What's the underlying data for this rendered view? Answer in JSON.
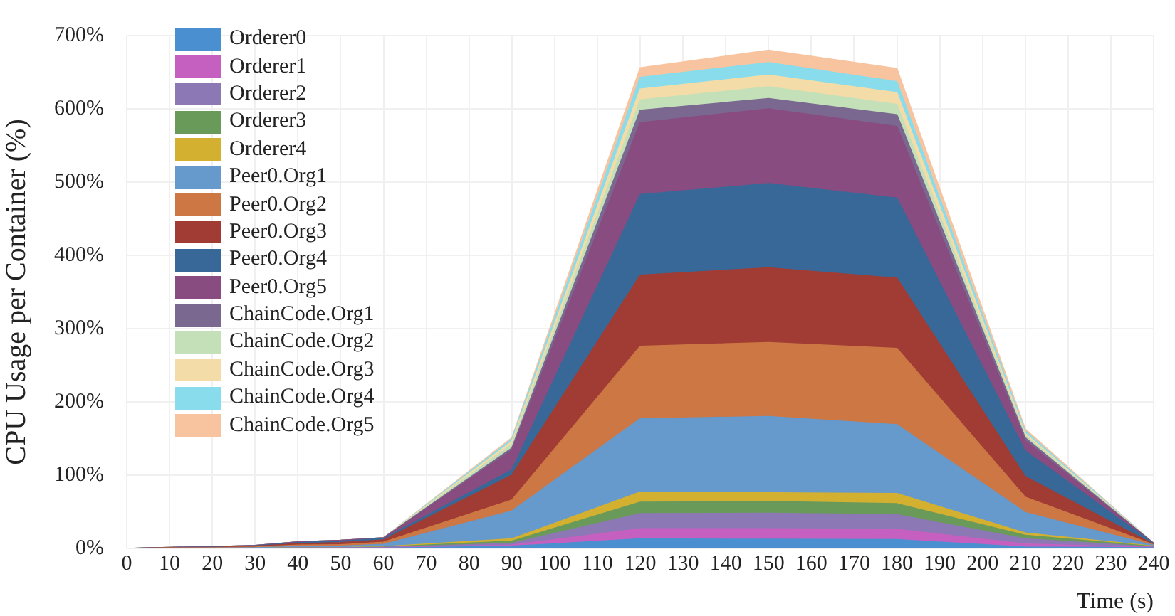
{
  "chart_data": {
    "type": "area",
    "stacked": true,
    "xlabel": "Time (s)",
    "ylabel": "CPU Usage per Container (%)",
    "legend": "top left",
    "grid": true,
    "x": [
      0,
      10,
      20,
      30,
      40,
      50,
      60,
      90,
      120,
      150,
      180,
      210,
      240
    ],
    "xlim": [
      0,
      240
    ],
    "xticks": [
      0,
      10,
      20,
      30,
      40,
      50,
      60,
      70,
      80,
      90,
      100,
      110,
      120,
      130,
      140,
      150,
      160,
      170,
      180,
      190,
      200,
      210,
      220,
      230,
      240
    ],
    "ylim": [
      0,
      700
    ],
    "yticks": [
      {
        "value": 0,
        "label": "0%"
      },
      {
        "value": 100,
        "label": "100%"
      },
      {
        "value": 200,
        "label": "200%"
      },
      {
        "value": 300,
        "label": "300%"
      },
      {
        "value": 400,
        "label": "400%"
      },
      {
        "value": 500,
        "label": "500%"
      },
      {
        "value": 600,
        "label": "600%"
      },
      {
        "value": 700,
        "label": "700%"
      }
    ],
    "series": [
      {
        "name": "Orderer0",
        "color": "#4a90d0",
        "values": [
          0,
          0,
          0,
          0,
          0.2,
          0.2,
          0.5,
          3,
          13,
          12.5,
          12,
          2,
          1
        ]
      },
      {
        "name": "Orderer1",
        "color": "#c660c0",
        "values": [
          0,
          0,
          0,
          0,
          0.2,
          0.2,
          0.5,
          1.5,
          14,
          14.5,
          14,
          4,
          0.5
        ]
      },
      {
        "name": "Orderer2",
        "color": "#8c78b4",
        "values": [
          0,
          0,
          0,
          0,
          0.2,
          0.2,
          0.5,
          2.5,
          20.5,
          21,
          20,
          7,
          0.5
        ]
      },
      {
        "name": "Orderer3",
        "color": "#6a9a5a",
        "values": [
          0,
          0,
          0,
          0,
          0.2,
          0.2,
          0.5,
          3,
          15.5,
          16,
          15,
          5,
          0.5
        ]
      },
      {
        "name": "Orderer4",
        "color": "#d4b030",
        "values": [
          0,
          0,
          0,
          0,
          0.2,
          0.2,
          0.5,
          3,
          14,
          12,
          14,
          3,
          0.5
        ]
      },
      {
        "name": "Peer0.Org1",
        "color": "#6699cc",
        "values": [
          0,
          0.3,
          0.5,
          1,
          1.5,
          2,
          3,
          38,
          100,
          104,
          94,
          28,
          1
        ]
      },
      {
        "name": "Peer0.Org2",
        "color": "#cc7744",
        "values": [
          0,
          0.3,
          0.5,
          1,
          2,
          2,
          3,
          15,
          99,
          101,
          104,
          21,
          1
        ]
      },
      {
        "name": "Peer0.Org3",
        "color": "#a03c34",
        "values": [
          0,
          0.3,
          0.5,
          1,
          2,
          3,
          3,
          34,
          97,
          102,
          96,
          28,
          0.5
        ]
      },
      {
        "name": "Peer0.Org4",
        "color": "#386898",
        "values": [
          0,
          0.3,
          0.5,
          0.5,
          1.5,
          2,
          2,
          7,
          110,
          115,
          109,
          35,
          1
        ]
      },
      {
        "name": "Peer0.Org5",
        "color": "#884c80",
        "values": [
          0,
          0.3,
          0.5,
          0.5,
          1,
          1,
          1,
          27,
          98,
          102,
          98,
          14,
          0.5
        ]
      },
      {
        "name": "ChainCode.Org1",
        "color": "#7a6890",
        "values": [
          0,
          0,
          0,
          0,
          0,
          0,
          0,
          3,
          17,
          14,
          16,
          4,
          0
        ]
      },
      {
        "name": "ChainCode.Org2",
        "color": "#c4e0b8",
        "values": [
          0,
          0,
          0,
          0,
          0,
          0,
          0,
          5,
          14,
          16,
          14,
          3,
          0
        ]
      },
      {
        "name": "ChainCode.Org3",
        "color": "#f4dca8",
        "values": [
          0,
          0,
          0,
          0,
          0,
          0,
          0,
          4,
          15,
          16,
          16,
          3,
          0
        ]
      },
      {
        "name": "ChainCode.Org4",
        "color": "#88dcec",
        "values": [
          0,
          0,
          0,
          0,
          0,
          0,
          0,
          3,
          16,
          17,
          15,
          3,
          0
        ]
      },
      {
        "name": "ChainCode.Org5",
        "color": "#f8c4a0",
        "values": [
          0,
          0,
          0,
          0,
          0,
          0,
          0,
          2,
          13,
          17,
          18,
          3,
          0
        ]
      }
    ]
  }
}
